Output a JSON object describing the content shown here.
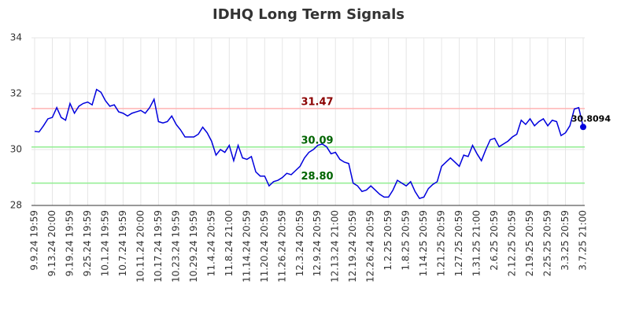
{
  "chart_data": {
    "type": "line",
    "title": "IDHQ Long Term Signals",
    "categories": [
      "9.9.24 19:59",
      null,
      null,
      null,
      "9.13.24 20:00",
      null,
      null,
      null,
      "9.19.24 19:59",
      null,
      null,
      null,
      "9.25.24 19:59",
      null,
      null,
      null,
      "10.1.24 19:59",
      null,
      null,
      null,
      "10.7.24 19:59",
      null,
      null,
      null,
      "10.11.24 20:00",
      null,
      null,
      null,
      "10.17.24 19:59",
      null,
      null,
      null,
      "10.23.24 19:59",
      null,
      null,
      null,
      "10.29.24 19:59",
      null,
      null,
      null,
      "11.4.24 20:59",
      null,
      null,
      null,
      "11.8.24 21:00",
      null,
      null,
      null,
      "11.14.24 20:59",
      null,
      null,
      null,
      "11.20.24 20:59",
      null,
      null,
      null,
      "11.26.24 20:59",
      null,
      null,
      null,
      "12.3.24 20:59",
      null,
      null,
      null,
      "12.9.24 20:59",
      null,
      null,
      null,
      "12.13.24 21:00",
      null,
      null,
      null,
      "12.19.24 20:59",
      null,
      null,
      null,
      "12.26.24 20:59",
      null,
      null,
      null,
      "1.2.25 20:59",
      null,
      null,
      null,
      "1.8.25 20:59",
      null,
      null,
      null,
      "1.14.25 20:59",
      null,
      null,
      null,
      "1.21.25 20:59",
      null,
      null,
      null,
      "1.27.25 20:59",
      null,
      null,
      null,
      "1.31.25 21:00",
      null,
      null,
      null,
      "2.6.25 20:59",
      null,
      null,
      null,
      "2.12.25 20:59",
      null,
      null,
      null,
      "2.19.25 20:59",
      null,
      null,
      null,
      "2.25.25 20:59",
      null,
      null,
      null,
      "3.3.25 20:59",
      null,
      null,
      null,
      "3.7.25 21:00"
    ],
    "series": [
      {
        "color": "#0000dd",
        "values": [
          30.65,
          30.63,
          30.85,
          31.1,
          31.15,
          31.5,
          31.15,
          31.05,
          31.65,
          31.3,
          31.55,
          31.65,
          31.7,
          31.6,
          32.15,
          32.05,
          31.75,
          31.55,
          31.6,
          31.35,
          31.3,
          31.2,
          31.3,
          31.35,
          31.4,
          31.3,
          31.5,
          31.8,
          31.0,
          30.95,
          31.0,
          31.2,
          30.9,
          30.7,
          30.45,
          30.45,
          30.45,
          30.55,
          30.8,
          30.6,
          30.3,
          29.8,
          30.0,
          29.9,
          30.15,
          29.6,
          30.15,
          29.7,
          29.65,
          29.75,
          29.2,
          29.05,
          29.05,
          28.7,
          28.85,
          28.9,
          29.0,
          29.15,
          29.1,
          29.25,
          29.4,
          29.7,
          29.9,
          30.0,
          30.15,
          30.2,
          30.1,
          29.85,
          29.9,
          29.65,
          29.55,
          29.5,
          28.8,
          28.7,
          28.5,
          28.55,
          28.7,
          28.55,
          28.4,
          28.3,
          28.3,
          28.55,
          28.9,
          28.8,
          28.7,
          28.85,
          28.5,
          28.25,
          28.3,
          28.6,
          28.75,
          28.85,
          29.4,
          29.55,
          29.7,
          29.55,
          29.4,
          29.8,
          29.75,
          30.15,
          29.85,
          29.6,
          30.0,
          30.35,
          30.4,
          30.1,
          30.2,
          30.3,
          30.45,
          30.55,
          31.05,
          30.9,
          31.1,
          30.85,
          31.0,
          31.1,
          30.85,
          31.05,
          31.0,
          30.5,
          30.6,
          30.85,
          31.45,
          31.5,
          30.8094
        ]
      }
    ],
    "hlines": [
      {
        "value": 31.47,
        "label": "31.47",
        "color": "#ffb3b3",
        "label_color": "#8b0000"
      },
      {
        "value": 30.09,
        "label": "30.09",
        "color": "#90ee90",
        "label_color": "#006400"
      },
      {
        "value": 28.8,
        "label": "28.80",
        "color": "#90ee90",
        "label_color": "#006400"
      }
    ],
    "ylim": [
      28,
      34
    ],
    "yticks": [
      28,
      30,
      32,
      34
    ],
    "grid": true
  }
}
